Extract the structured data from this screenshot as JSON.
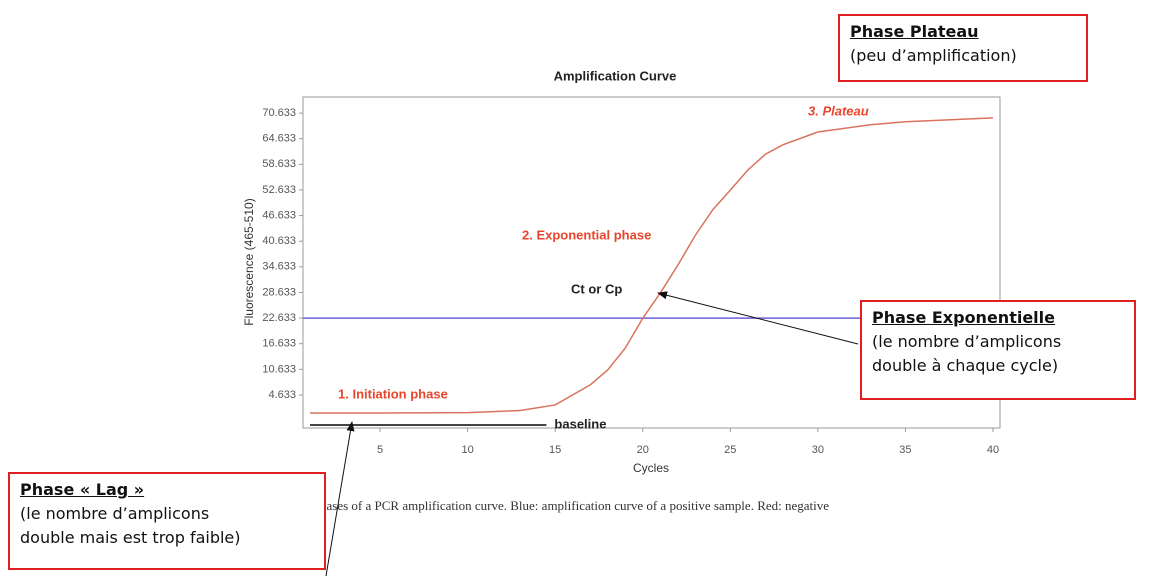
{
  "chart_data": {
    "type": "line",
    "title": "Amplification Curve",
    "x_label": "Cycles",
    "y_label": "Fluorescence (465-510)",
    "x": [
      1,
      5,
      10,
      13,
      15,
      17,
      18,
      19,
      20,
      21,
      22,
      23,
      24,
      25,
      26,
      27,
      28,
      30,
      33,
      35,
      40
    ],
    "series": [
      {
        "name": "amplification",
        "color": "#d9735e",
        "values": [
          0.4,
          0.4,
          0.5,
          1.0,
          2.3,
          7,
          10.5,
          15.6,
          22.6,
          28.5,
          35,
          42,
          48,
          52.6,
          57.3,
          61,
          63.2,
          66.2,
          67.9,
          68.6,
          69.5
        ]
      }
    ],
    "threshold": {
      "value": 22.633,
      "color": "#6a5fd8"
    },
    "baseline": {
      "label": "baseline",
      "value": -2.4,
      "x": [
        1,
        14.5
      ],
      "color": "#444444"
    },
    "xlim": [
      0.6,
      40.4
    ],
    "xticks": [
      5,
      10,
      15,
      20,
      25,
      30,
      35,
      40
    ],
    "ylim": [
      -3.1,
      74.4
    ],
    "yticks": [
      4.633,
      10.633,
      16.633,
      22.633,
      28.633,
      34.633,
      40.633,
      46.633,
      52.633,
      58.633,
      64.633,
      70.633
    ],
    "annotations": [
      "1. Initiation phase",
      "2. Exponential phase",
      "3. Plateau",
      "Ct or Cp"
    ],
    "caption": "hases of a PCR amplification curve. Blue: amplification curve of a positive sample. Red: negative"
  },
  "boxes": [
    {
      "title": "Phase Plateau",
      "lines": [
        "(peu d’amplification)"
      ]
    },
    {
      "title": "Phase Exponentielle",
      "lines": [
        "(le nombre d’amplicons",
        "double à chaque cycle)"
      ]
    },
    {
      "title": "Phase « Lag »",
      "lines": [
        "(le nombre d’amplicons",
        "double mais est trop faible)"
      ]
    }
  ]
}
